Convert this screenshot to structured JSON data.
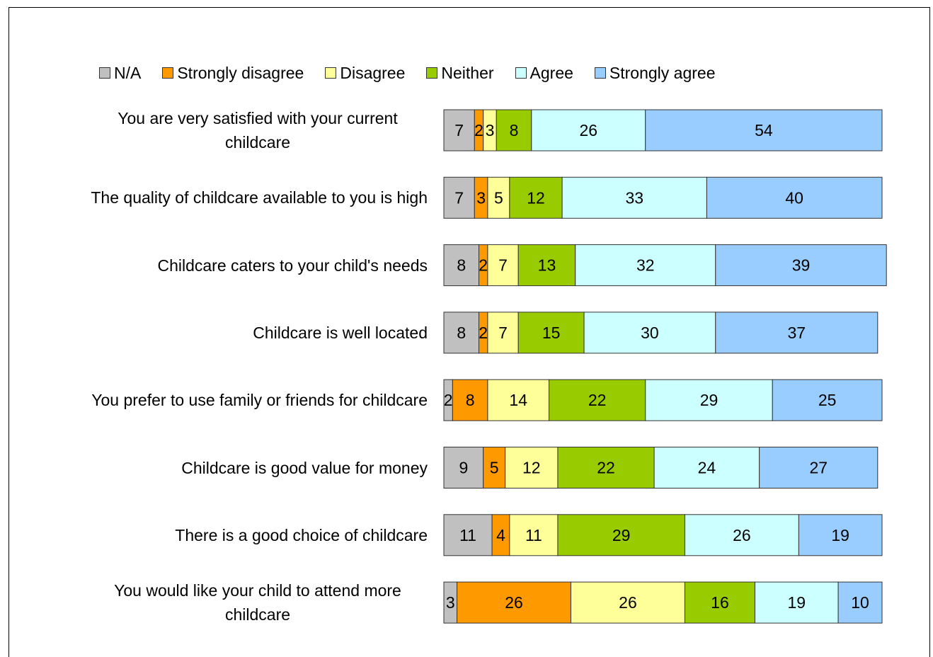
{
  "chart_data": {
    "type": "stacked_barh",
    "categories": [
      "You are very satisfied with your current childcare",
      "The quality of childcare available to you is high",
      "Childcare caters to your child's needs",
      "Childcare is well located",
      "You prefer to use family or friends for childcare",
      "Childcare is good value for money",
      "There is a good choice of childcare",
      "You would like your child to attend more childcare"
    ],
    "series": [
      {
        "name": "N/A",
        "color": "#c0c0c0",
        "values": [
          7,
          7,
          8,
          8,
          2,
          9,
          11,
          3
        ]
      },
      {
        "name": "Strongly disagree",
        "color": "#ff9900",
        "values": [
          2,
          3,
          2,
          2,
          8,
          5,
          4,
          26
        ]
      },
      {
        "name": "Disagree",
        "color": "#ffff99",
        "values": [
          3,
          5,
          7,
          7,
          14,
          12,
          11,
          26
        ]
      },
      {
        "name": "Neither",
        "color": "#99cc00",
        "values": [
          8,
          12,
          13,
          15,
          22,
          22,
          29,
          16
        ]
      },
      {
        "name": "Agree",
        "color": "#ccffff",
        "values": [
          26,
          33,
          32,
          30,
          29,
          24,
          26,
          19
        ]
      },
      {
        "name": "Strongly agree",
        "color": "#99ccff",
        "values": [
          54,
          40,
          39,
          37,
          25,
          27,
          19,
          10
        ]
      }
    ],
    "xlim": [
      0,
      100
    ],
    "legend": "top"
  }
}
